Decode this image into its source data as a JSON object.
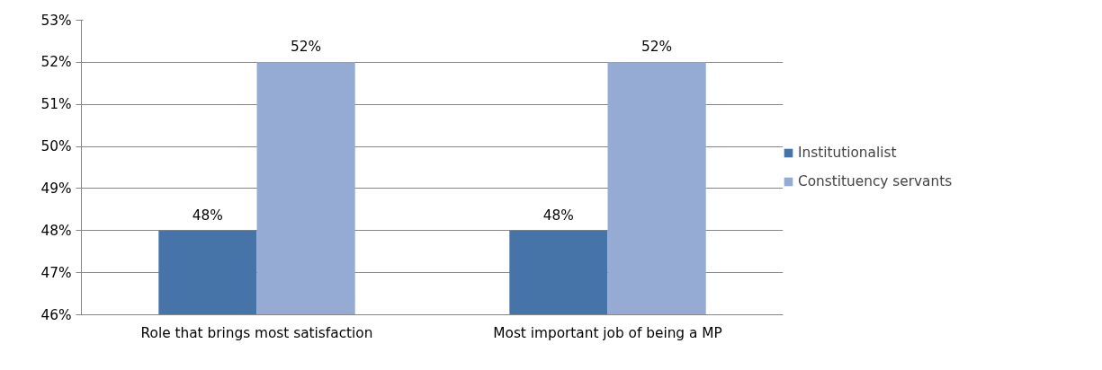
{
  "chart_data": {
    "type": "bar",
    "categories": [
      "Role that brings most satisfaction",
      "Most important job of being a MP"
    ],
    "series": [
      {
        "name": "Institutionalist",
        "color": "#4674a8",
        "values": [
          48,
          48
        ],
        "value_labels": [
          "48%",
          "48%"
        ]
      },
      {
        "name": "Constituency servants",
        "color": "#95abd3",
        "values": [
          52,
          52
        ],
        "value_labels": [
          "52%",
          "52%"
        ]
      }
    ],
    "ylim": [
      46,
      53
    ],
    "yticks": [
      {
        "value": 46,
        "label": "46%"
      },
      {
        "value": 47,
        "label": "47%"
      },
      {
        "value": 48,
        "label": "48%"
      },
      {
        "value": 49,
        "label": "49%"
      },
      {
        "value": 50,
        "label": "50%"
      },
      {
        "value": 51,
        "label": "51%"
      },
      {
        "value": 52,
        "label": "52%"
      },
      {
        "value": 53,
        "label": "53%"
      }
    ],
    "grid": "y",
    "legend": "right"
  }
}
